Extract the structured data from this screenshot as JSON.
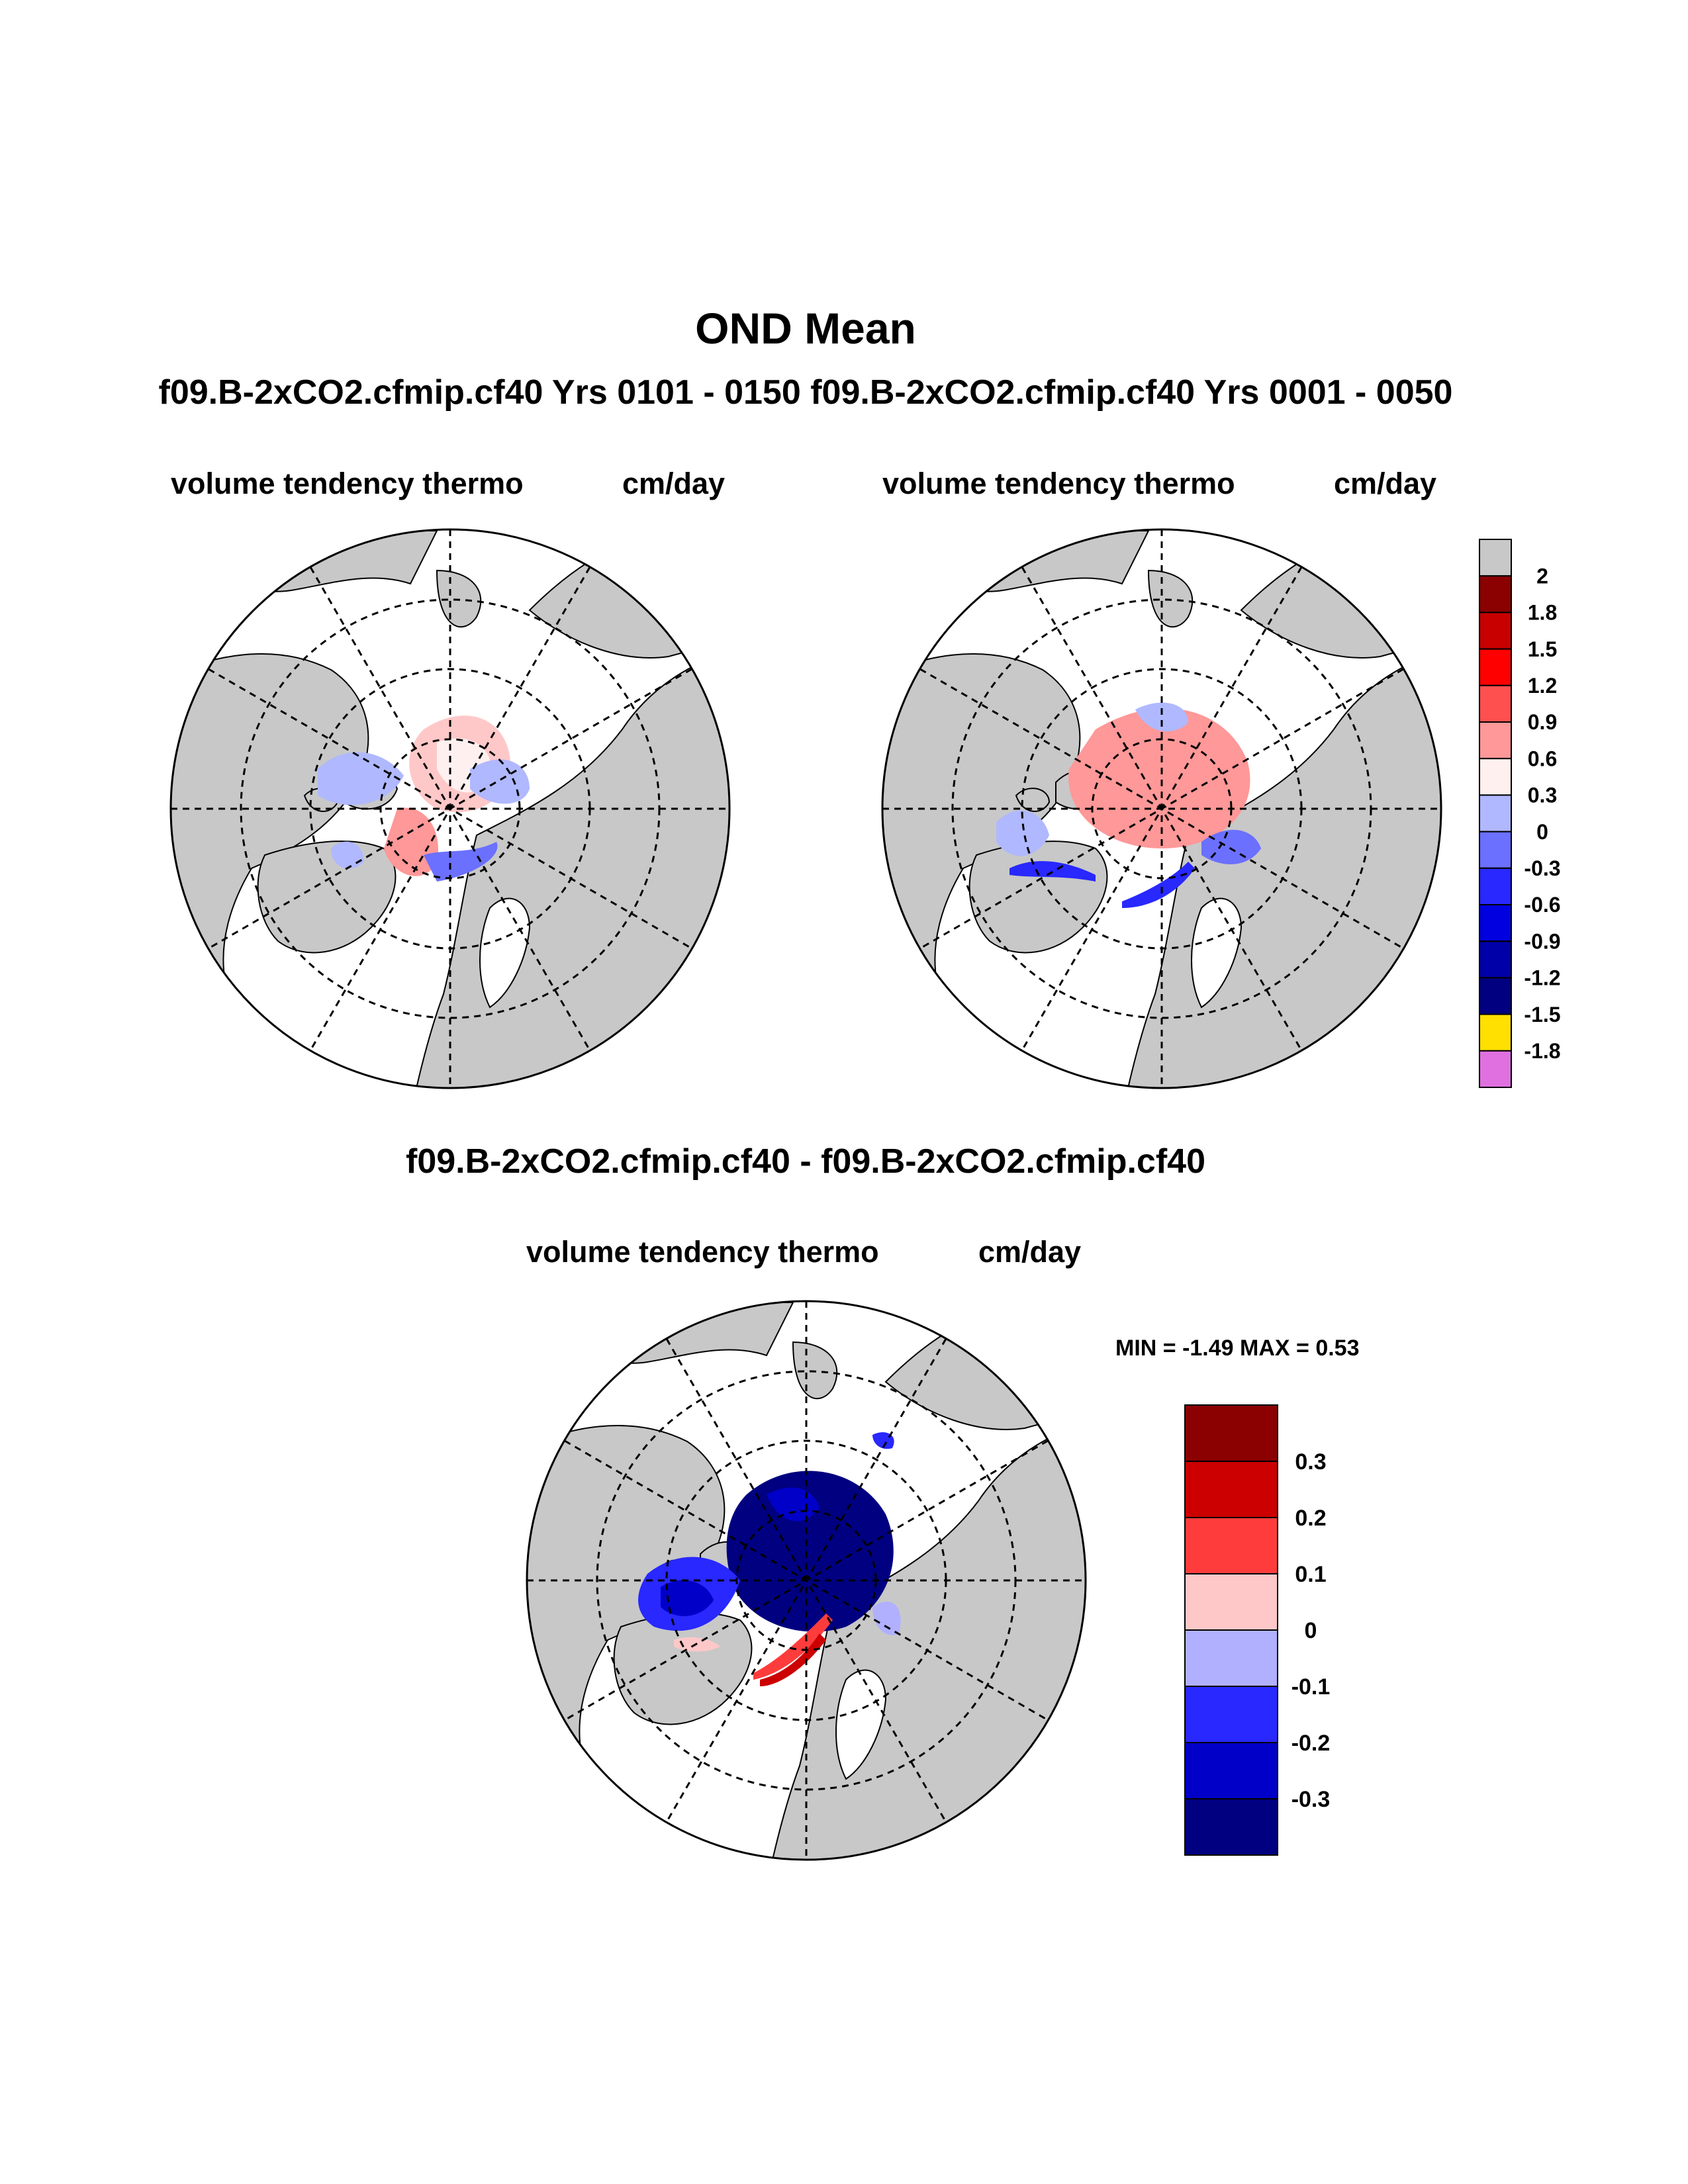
{
  "figure": {
    "title": "OND Mean",
    "case_line": "f09.B-2xCO2.cfmip.cf40  Yrs 0101 - 0150 f09.B-2xCO2.cfmip.cf40  Yrs 0001 - 0050",
    "diff_title": "f09.B-2xCO2.cfmip.cf40 - f09.B-2xCO2.cfmip.cf40"
  },
  "panels": {
    "left": {
      "variable": "volume tendency thermo",
      "units": "cm/day"
    },
    "right": {
      "variable": "volume tendency thermo",
      "units": "cm/day"
    },
    "diff": {
      "variable": "volume tendency thermo",
      "units": "cm/day",
      "min_max": "MIN =  -1.49 MAX =   0.53"
    }
  },
  "chart_data": [
    {
      "type": "colorbar",
      "name": "main-colorbar",
      "labels": [
        "2",
        "1.8",
        "1.5",
        "1.2",
        "0.9",
        "0.6",
        "0.3",
        "0",
        "-0.3",
        "-0.6",
        "-0.9",
        "-1.2",
        "-1.5",
        "-1.8"
      ],
      "colors": [
        "#c8c8c8",
        "#8b0000",
        "#c80000",
        "#ff0000",
        "#ff5050",
        "#ff9898",
        "#fff0f0",
        "#b0b8ff",
        "#6b70ff",
        "#2828ff",
        "#0000e0",
        "#0000a8",
        "#000080",
        "#ffe000",
        "#e070e0"
      ]
    },
    {
      "type": "colorbar",
      "name": "diff-colorbar",
      "labels": [
        "0.3",
        "0.2",
        "0.1",
        "0",
        "-0.1",
        "-0.2",
        "-0.3"
      ],
      "colors": [
        "#8b0000",
        "#cc0000",
        "#ff3c3c",
        "#ffc8c8",
        "#b0b0ff",
        "#2828ff",
        "#0000c8",
        "#000080"
      ]
    }
  ],
  "colors": {
    "land": "#c8c8c8",
    "ocean": "#ffffff"
  }
}
